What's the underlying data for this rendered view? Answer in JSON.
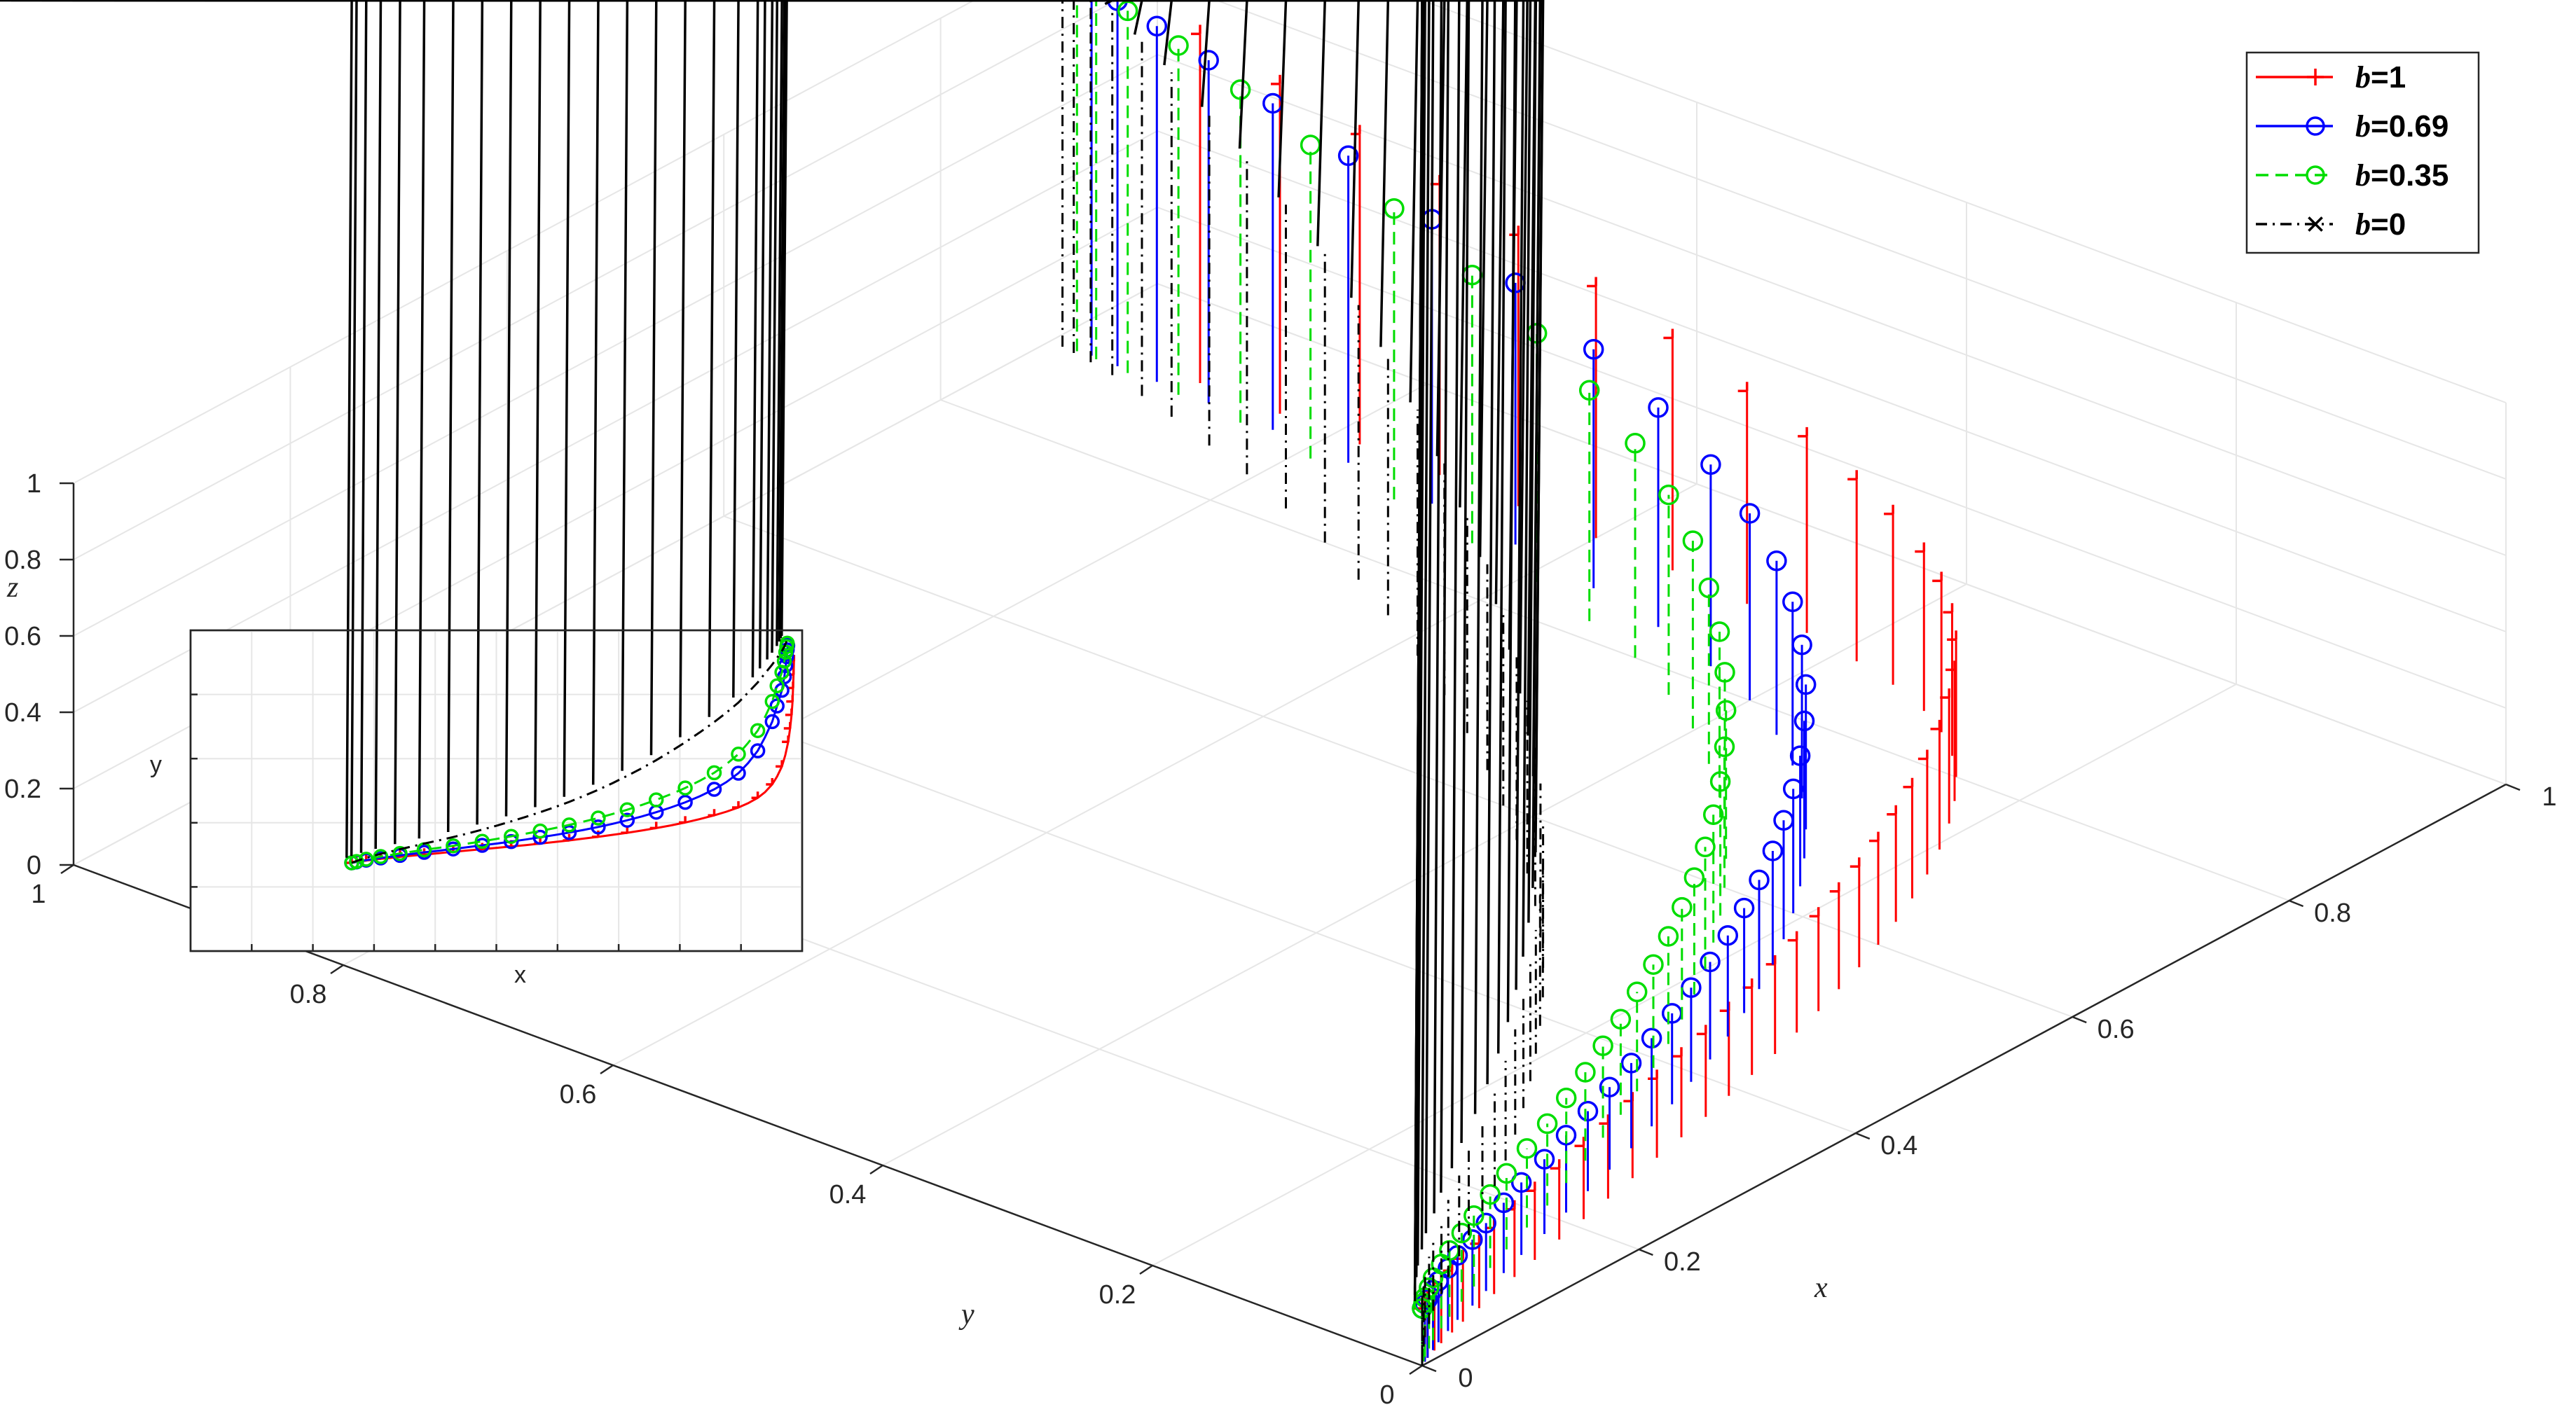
{
  "chart_data": [
    {
      "type": "line",
      "subtype": "3d-stem",
      "title": "",
      "xlabel": "x",
      "ylabel": "y",
      "zlabel": "z",
      "xlim": [
        0,
        1
      ],
      "ylim": [
        0,
        1
      ],
      "zlim": [
        0,
        1
      ],
      "x_ticks": [
        "0",
        "0.2",
        "0.4",
        "0.6",
        "0.8",
        "1"
      ],
      "y_ticks": [
        "0",
        "0.2",
        "0.4",
        "0.6",
        "0.8",
        "1"
      ],
      "z_ticks": [
        "0",
        "0.2",
        "0.4",
        "0.6",
        "0.8",
        "1"
      ],
      "grid": true,
      "legend_position": "top-right",
      "series": [
        {
          "label_prefix": "b",
          "label_value": "=1",
          "color": "#ff0000",
          "line": "solid",
          "marker": "+",
          "x": [
            0.0,
            0.005,
            0.01,
            0.02,
            0.03,
            0.045,
            0.06,
            0.08,
            0.1,
            0.125,
            0.15,
            0.18,
            0.21,
            0.24,
            0.27,
            0.3,
            0.33,
            0.36,
            0.39,
            0.42,
            0.45,
            0.48,
            0.51,
            0.54,
            0.57,
            0.6,
            0.63,
            0.66,
            0.69,
            0.72,
            0.75,
            0.775,
            0.8,
            0.82,
            0.84,
            0.855,
            0.87,
            0.88,
            0.89,
            0.897,
            0.903,
            0.907,
            0.91,
            0.912,
            0.913,
            0.914,
            0.915
          ],
          "y": [
            0.0,
            0.002,
            0.004,
            0.007,
            0.01,
            0.014,
            0.018,
            0.022,
            0.027,
            0.032,
            0.037,
            0.043,
            0.049,
            0.055,
            0.061,
            0.067,
            0.073,
            0.079,
            0.086,
            0.093,
            0.1,
            0.108,
            0.116,
            0.125,
            0.134,
            0.144,
            0.155,
            0.167,
            0.18,
            0.195,
            0.212,
            0.228,
            0.247,
            0.266,
            0.29,
            0.315,
            0.35,
            0.385,
            0.43,
            0.48,
            0.54,
            0.6,
            0.66,
            0.72,
            0.78,
            0.84,
            0.9
          ]
        },
        {
          "label_prefix": "b",
          "label_value": "=0.69",
          "color": "#0000ff",
          "line": "solid",
          "marker": "o",
          "x": [
            0.0,
            0.005,
            0.01,
            0.02,
            0.03,
            0.045,
            0.06,
            0.08,
            0.1,
            0.125,
            0.15,
            0.18,
            0.21,
            0.24,
            0.27,
            0.3,
            0.33,
            0.36,
            0.39,
            0.42,
            0.45,
            0.48,
            0.51,
            0.54,
            0.57,
            0.6,
            0.63,
            0.66,
            0.69,
            0.72,
            0.75,
            0.775,
            0.8,
            0.82,
            0.84,
            0.855,
            0.87,
            0.88,
            0.89,
            0.895,
            0.898,
            0.9,
            0.901,
            0.902
          ],
          "y": [
            0.0,
            0.002,
            0.004,
            0.008,
            0.012,
            0.017,
            0.022,
            0.027,
            0.033,
            0.04,
            0.047,
            0.054,
            0.062,
            0.07,
            0.078,
            0.086,
            0.095,
            0.104,
            0.114,
            0.124,
            0.135,
            0.147,
            0.16,
            0.174,
            0.19,
            0.207,
            0.226,
            0.247,
            0.27,
            0.297,
            0.328,
            0.36,
            0.4,
            0.445,
            0.5,
            0.56,
            0.63,
            0.7,
            0.77,
            0.83,
            0.88,
            0.92,
            0.95,
            0.97
          ]
        },
        {
          "label_prefix": "b",
          "label_value": "=0.35",
          "color": "#00dd00",
          "line": "dashed",
          "marker": "o",
          "x": [
            0.0,
            0.005,
            0.01,
            0.02,
            0.03,
            0.045,
            0.06,
            0.08,
            0.1,
            0.125,
            0.15,
            0.18,
            0.21,
            0.24,
            0.27,
            0.3,
            0.33,
            0.36,
            0.39,
            0.42,
            0.45,
            0.48,
            0.51,
            0.54,
            0.57,
            0.6,
            0.63,
            0.66,
            0.69,
            0.72,
            0.75,
            0.775,
            0.8,
            0.82,
            0.84,
            0.855,
            0.87,
            0.88,
            0.89,
            0.895,
            0.898,
            0.9,
            0.901
          ],
          "y": [
            0.0,
            0.003,
            0.006,
            0.011,
            0.016,
            0.022,
            0.028,
            0.035,
            0.042,
            0.05,
            0.058,
            0.067,
            0.076,
            0.086,
            0.096,
            0.107,
            0.118,
            0.13,
            0.142,
            0.155,
            0.169,
            0.184,
            0.2,
            0.218,
            0.237,
            0.258,
            0.281,
            0.306,
            0.334,
            0.366,
            0.402,
            0.44,
            0.485,
            0.535,
            0.59,
            0.65,
            0.72,
            0.79,
            0.85,
            0.9,
            0.94,
            0.965,
            0.98
          ]
        },
        {
          "label_prefix": "b",
          "label_value": "=0",
          "color": "#000000",
          "line": "dashdot",
          "marker": "x",
          "x": [
            0.0,
            0.005,
            0.01,
            0.02,
            0.03,
            0.045,
            0.06,
            0.08,
            0.1,
            0.125,
            0.15,
            0.18,
            0.21,
            0.24,
            0.27,
            0.3,
            0.33,
            0.36,
            0.39,
            0.42,
            0.45,
            0.48,
            0.51,
            0.54,
            0.57,
            0.6,
            0.63,
            0.66,
            0.69,
            0.72,
            0.75,
            0.775,
            0.8,
            0.82,
            0.84,
            0.855,
            0.87,
            0.88,
            0.89,
            0.895,
            0.898,
            0.9
          ],
          "y": [
            0.0,
            0.004,
            0.008,
            0.015,
            0.022,
            0.031,
            0.04,
            0.05,
            0.061,
            0.073,
            0.086,
            0.1,
            0.115,
            0.131,
            0.148,
            0.166,
            0.185,
            0.205,
            0.226,
            0.248,
            0.272,
            0.298,
            0.326,
            0.356,
            0.388,
            0.422,
            0.458,
            0.497,
            0.538,
            0.582,
            0.628,
            0.67,
            0.715,
            0.76,
            0.805,
            0.845,
            0.885,
            0.915,
            0.945,
            0.965,
            0.98,
            0.99
          ]
        }
      ]
    },
    {
      "type": "line",
      "subtype": "inset-projection",
      "title": "",
      "xlabel": "x",
      "ylabel": "y",
      "grid": true
    }
  ]
}
